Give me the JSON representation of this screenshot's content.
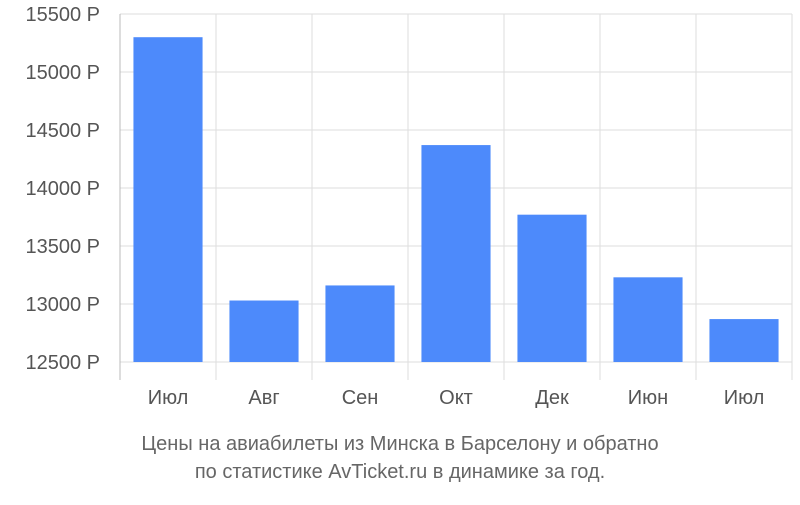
{
  "chart_data": {
    "type": "bar",
    "categories": [
      "Июл",
      "Авг",
      "Сен",
      "Окт",
      "Дек",
      "Июн",
      "Июл"
    ],
    "values": [
      15300,
      13030,
      13160,
      14370,
      13770,
      13230,
      12870
    ],
    "ylim": [
      12500,
      15500
    ],
    "yticks": [
      12500,
      13000,
      13500,
      14000,
      14500,
      15000,
      15500
    ],
    "y_unit": "Р",
    "grid": true,
    "bar_color": "#4d8afb",
    "grid_color": "#dddddd",
    "axis_color": "#bbbbbb"
  },
  "caption": {
    "line1": "Цены на авиабилеты из Минска в Барселону и обратно",
    "line2": "по статистике AvTicket.ru в динамике за год."
  }
}
